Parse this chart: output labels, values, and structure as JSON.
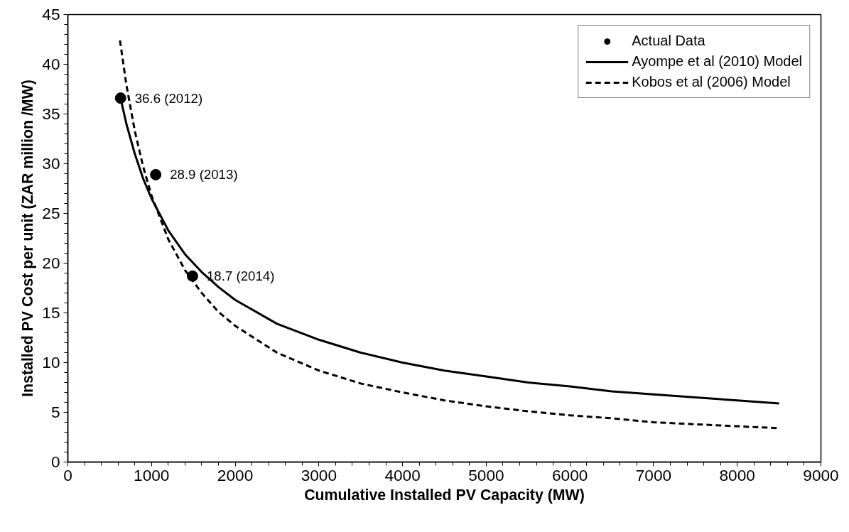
{
  "chart_data": {
    "type": "line",
    "xlabel": "Cumulative Installed PV Capacity (MW)",
    "ylabel": "Installed PV Cost per unit (ZAR million /MW)",
    "xlim": [
      0,
      9000
    ],
    "ylim": [
      0,
      45
    ],
    "xticks": [
      0,
      1000,
      2000,
      3000,
      4000,
      5000,
      6000,
      7000,
      8000,
      9000
    ],
    "yticks": [
      0,
      5,
      10,
      15,
      20,
      25,
      30,
      35,
      40,
      45
    ],
    "grid": false,
    "legend": "top right",
    "series": [
      {
        "name": "Actual Data",
        "type": "scatter",
        "marker": "circle",
        "color": "#000000",
        "x": [
          630,
          1050,
          1490
        ],
        "values": [
          36.6,
          28.9,
          18.7
        ]
      },
      {
        "name": "Ayompe et al (2010) Model",
        "line_style": "solid",
        "color": "#000000",
        "x": [
          630,
          700,
          800,
          900,
          1000,
          1200,
          1400,
          1600,
          1800,
          2000,
          2500,
          3000,
          3500,
          4000,
          4500,
          5000,
          5500,
          6000,
          6500,
          7000,
          7500,
          8000,
          8500
        ],
        "values": [
          36.6,
          34.0,
          31.0,
          28.5,
          26.5,
          23.3,
          20.9,
          19.1,
          17.6,
          16.3,
          13.9,
          12.3,
          11.0,
          10.0,
          9.2,
          8.6,
          8.0,
          7.6,
          7.1,
          6.8,
          6.5,
          6.2,
          5.9
        ]
      },
      {
        "name": "Kobos et al (2006) Model",
        "line_style": "dashed",
        "color": "#000000",
        "x": [
          623,
          700,
          800,
          900,
          1000,
          1200,
          1400,
          1600,
          1800,
          2000,
          2500,
          3000,
          3500,
          4000,
          4500,
          5000,
          5500,
          6000,
          6500,
          7000,
          7500,
          8000,
          8500
        ],
        "values": [
          42.4,
          37.9,
          33.3,
          29.7,
          26.8,
          22.4,
          19.3,
          17.0,
          15.1,
          13.7,
          11.0,
          9.2,
          7.9,
          7.0,
          6.2,
          5.6,
          5.1,
          4.7,
          4.4,
          4.0,
          3.8,
          3.6,
          3.4
        ]
      }
    ],
    "annotations": [
      {
        "text": "36.6 (2012)",
        "x": 630,
        "y": 36.6
      },
      {
        "text": "28.9 (2013)",
        "x": 1050,
        "y": 28.9
      },
      {
        "text": "18.7 (2014)",
        "x": 1490,
        "y": 18.7
      }
    ]
  }
}
